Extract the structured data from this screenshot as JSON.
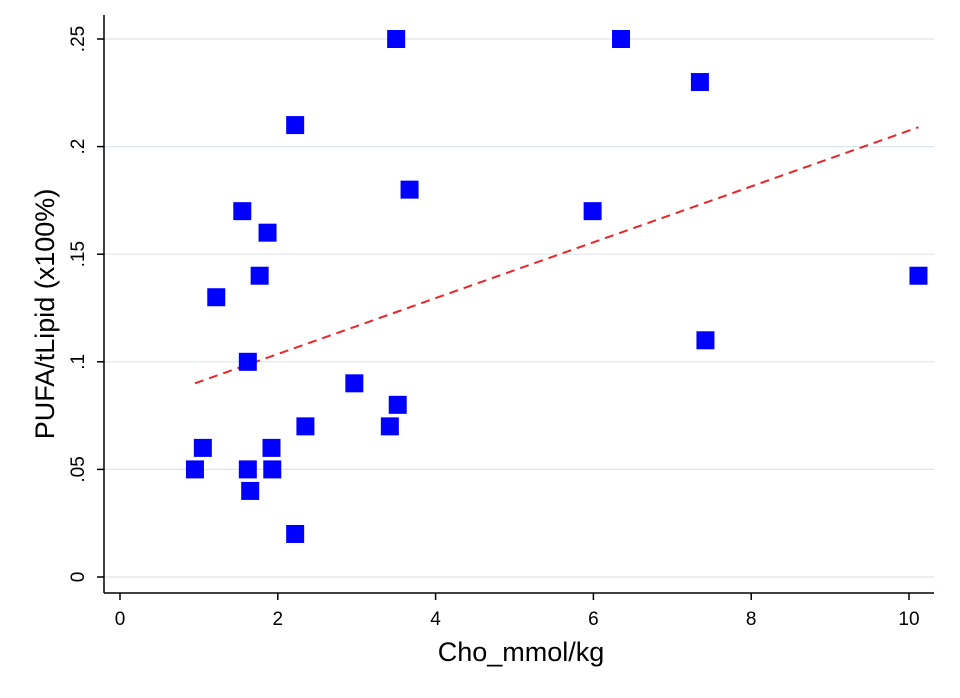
{
  "chart_data": {
    "type": "scatter",
    "title": "",
    "xlabel": "Cho_mmol/kg",
    "ylabel": "PUFA/tLipid (x100%)",
    "xlim": [
      -0.2,
      10.3
    ],
    "ylim": [
      -0.008,
      0.262
    ],
    "xticks": [
      0,
      2,
      4,
      6,
      8,
      10
    ],
    "xtick_labels": [
      "0",
      "2",
      "4",
      "6",
      "8",
      "10"
    ],
    "yticks": [
      0,
      0.05,
      0.1,
      0.15,
      0.2,
      0.25
    ],
    "ytick_labels": [
      "0",
      ".05",
      ".1",
      ".15",
      ".2",
      ".25"
    ],
    "grid": true,
    "marker": "square",
    "marker_color": "#0000ff",
    "fit_line_color": "#e8262a",
    "series": [
      {
        "name": "PUFA/tLipid",
        "points": [
          [
            0.95,
            0.05
          ],
          [
            1.05,
            0.06
          ],
          [
            1.22,
            0.13
          ],
          [
            1.55,
            0.17
          ],
          [
            1.62,
            0.05
          ],
          [
            1.62,
            0.1
          ],
          [
            1.65,
            0.04
          ],
          [
            1.77,
            0.14
          ],
          [
            1.87,
            0.16
          ],
          [
            1.92,
            0.06
          ],
          [
            1.93,
            0.05
          ],
          [
            2.22,
            0.21
          ],
          [
            2.22,
            0.02
          ],
          [
            2.35,
            0.07
          ],
          [
            2.97,
            0.09
          ],
          [
            3.42,
            0.07
          ],
          [
            3.5,
            0.25
          ],
          [
            3.52,
            0.08
          ],
          [
            3.67,
            0.18
          ],
          [
            5.99,
            0.17
          ],
          [
            6.35,
            0.25
          ],
          [
            7.35,
            0.23
          ],
          [
            7.42,
            0.11
          ],
          [
            10.12,
            0.14
          ]
        ]
      }
    ],
    "fit_line": {
      "name": "Linear fit",
      "style": "dashed",
      "x": [
        0.95,
        10.12
      ],
      "y": [
        0.09,
        0.209
      ]
    }
  }
}
